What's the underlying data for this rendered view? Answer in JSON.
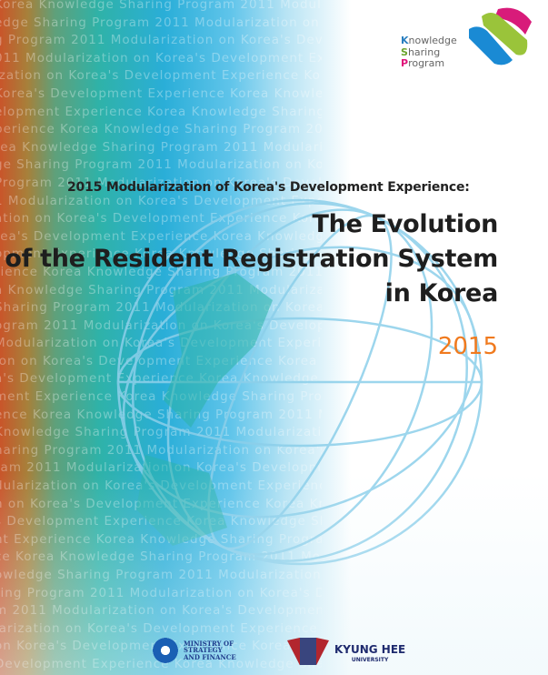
{
  "background_text": "Korea Knowledge Sharing Program 2011 Modularization on Korea's Development Experience ",
  "ksp": {
    "line1_initial": "K",
    "line1_rest": "nowledge",
    "line2_initial": "S",
    "line2_rest": "haring",
    "line3_initial": "P",
    "line3_rest": "rogram",
    "colors": {
      "k": "#2a7fc0",
      "s": "#6aa32a",
      "p": "#e0127a"
    }
  },
  "cover": {
    "subtitle": "2015 Modularization of Korea's Development Experience:",
    "title_lines": [
      "The Evolution",
      "of the Resident Registration System",
      "in Korea"
    ],
    "year": "2015",
    "year_color": "#f07a1e"
  },
  "publishers": {
    "ministry": [
      "MINISTRY OF",
      "STRATEGY",
      "AND FINANCE"
    ],
    "university": {
      "name": "KYUNG HEE",
      "sub": "UNIVERSITY"
    }
  }
}
